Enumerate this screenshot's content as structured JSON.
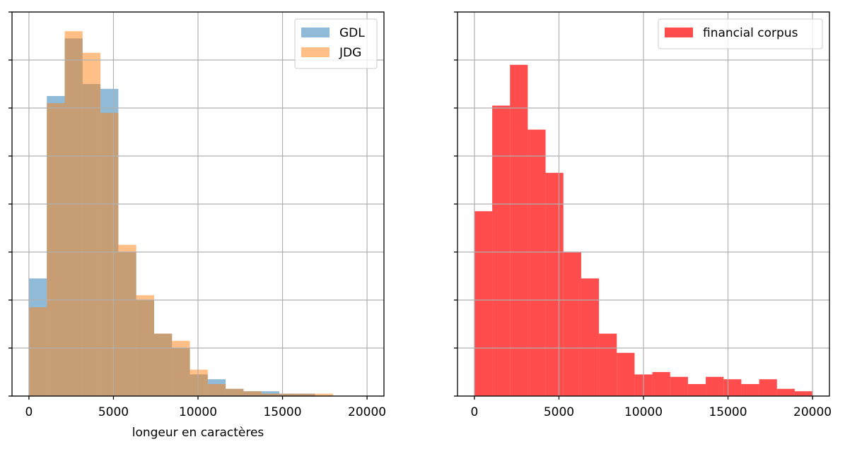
{
  "chart_data": [
    {
      "type": "histogram",
      "xlabel": "longeur en caractères",
      "ylabel": "",
      "xlim": [
        -1000,
        21000
      ],
      "ylim": [
        0,
        160
      ],
      "xticks": [
        0,
        5000,
        10000,
        15000,
        20000
      ],
      "xtick_labels": [
        "0",
        "5000",
        "10000",
        "15000",
        "20000"
      ],
      "yticks": [
        0,
        20,
        40,
        60,
        80,
        100,
        120,
        140,
        160
      ],
      "ytick_labels_shown": false,
      "grid": true,
      "legend_position": "top-right",
      "bin_edges": [
        0,
        1058,
        2116,
        3174,
        4232,
        5290,
        6348,
        7406,
        8464,
        9522,
        10580,
        11638,
        12696,
        13754,
        14812,
        15870,
        16928,
        17986
      ],
      "series": [
        {
          "name": "GDL",
          "color": "#1f77b4",
          "alpha": 0.5,
          "values": [
            49,
            125,
            149,
            130,
            128,
            60,
            40,
            26,
            20,
            9,
            7,
            3,
            2,
            2,
            1,
            1,
            0
          ]
        },
        {
          "name": "JDG",
          "color": "#ff7f0e",
          "alpha": 0.5,
          "values": [
            37,
            122,
            152,
            143,
            118,
            63,
            42,
            26,
            23,
            11,
            5,
            3,
            2,
            1,
            1,
            1,
            1
          ]
        }
      ]
    },
    {
      "type": "histogram",
      "xlabel": "",
      "ylabel": "",
      "xlim": [
        -1000,
        21000
      ],
      "ylim": [
        0,
        160
      ],
      "xticks": [
        0,
        5000,
        10000,
        15000,
        20000
      ],
      "xtick_labels": [
        "0",
        "5000",
        "10000",
        "15000",
        "20000"
      ],
      "yticks": [
        0,
        20,
        40,
        60,
        80,
        100,
        120,
        140,
        160
      ],
      "ytick_labels_shown": false,
      "grid": true,
      "legend_position": "top-right",
      "bin_edges": [
        0,
        1053,
        2105,
        3158,
        4210,
        5263,
        6316,
        7368,
        8421,
        9474,
        10526,
        11579,
        12632,
        13684,
        14737,
        15789,
        16842,
        17895,
        18947,
        20000
      ],
      "series": [
        {
          "name": "financial corpus",
          "color": "#ff0000",
          "alpha": 0.7,
          "values": [
            77,
            121,
            138,
            111,
            93,
            60,
            49,
            26,
            18,
            9,
            10,
            8,
            5,
            8,
            7,
            5,
            7,
            3,
            2
          ]
        }
      ]
    }
  ]
}
